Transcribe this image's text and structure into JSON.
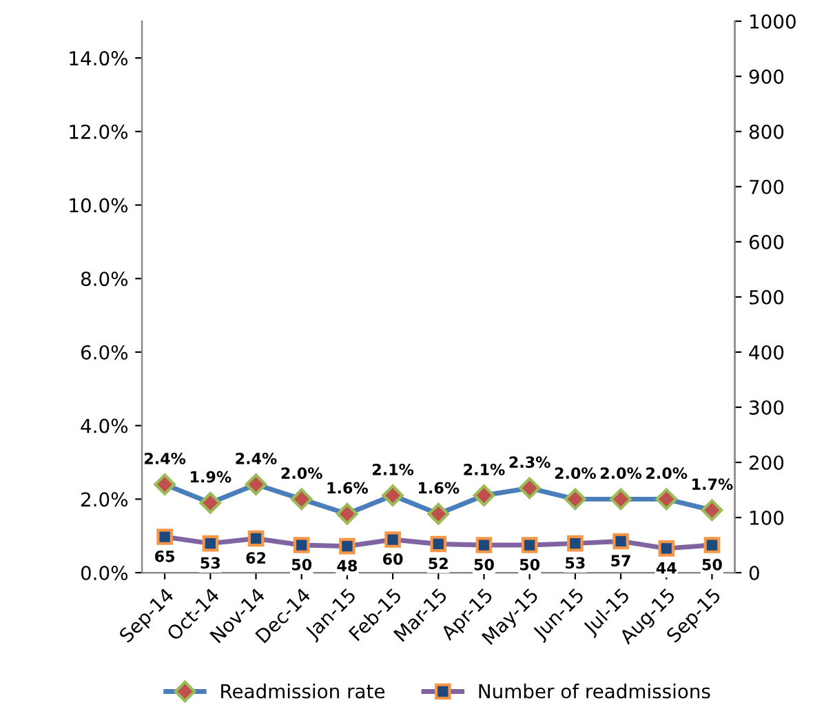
{
  "chart_data": {
    "type": "line",
    "categories": [
      "Sep-14",
      "Oct-14",
      "Nov-14",
      "Dec-14",
      "Jan-15",
      "Feb-15",
      "Mar-15",
      "Apr-15",
      "May-15",
      "Jun-15",
      "Jul-15",
      "Aug-15",
      "Sep-15"
    ],
    "series": [
      {
        "name": "Readmission rate",
        "color": "#4a7ebb",
        "marker": "diamond",
        "values": [
          2.4,
          1.9,
          2.4,
          2.0,
          1.6,
          2.1,
          1.6,
          2.1,
          2.3,
          2.0,
          2.0,
          2.0,
          1.7
        ],
        "value_labels": [
          "2.4%",
          "1.9%",
          "2.4%",
          "2.0%",
          "1.6%",
          "2.1%",
          "1.6%",
          "2.1%",
          "2.3%",
          "2.0%",
          "2.0%",
          "2.0%",
          "1.7%"
        ]
      },
      {
        "name": "Number of readmissions",
        "color": "#8064a2",
        "marker": "square",
        "axis": "y2",
        "values": [
          65,
          53,
          62,
          50,
          48,
          60,
          52,
          50,
          50,
          53,
          57,
          44,
          50
        ],
        "data_labels": true
      }
    ],
    "ylim": [
      0,
      15
    ],
    "yticks": [
      {
        "value": 0,
        "label": "0.0%"
      },
      {
        "value": 2,
        "label": "2.0%"
      },
      {
        "value": 4,
        "label": "4.0%"
      },
      {
        "value": 6,
        "label": "6.0%"
      },
      {
        "value": 8,
        "label": "8.0%"
      },
      {
        "value": 10,
        "label": "10.0%"
      },
      {
        "value": 12,
        "label": "12.0%"
      },
      {
        "value": 14,
        "label": "14.0%"
      }
    ],
    "y2lim": [
      0,
      1000
    ],
    "y2ticks": [
      0,
      100,
      200,
      300,
      400,
      500,
      600,
      700,
      800,
      900,
      1000
    ],
    "grid": false,
    "legend": "bottom",
    "line_style": "solid"
  }
}
